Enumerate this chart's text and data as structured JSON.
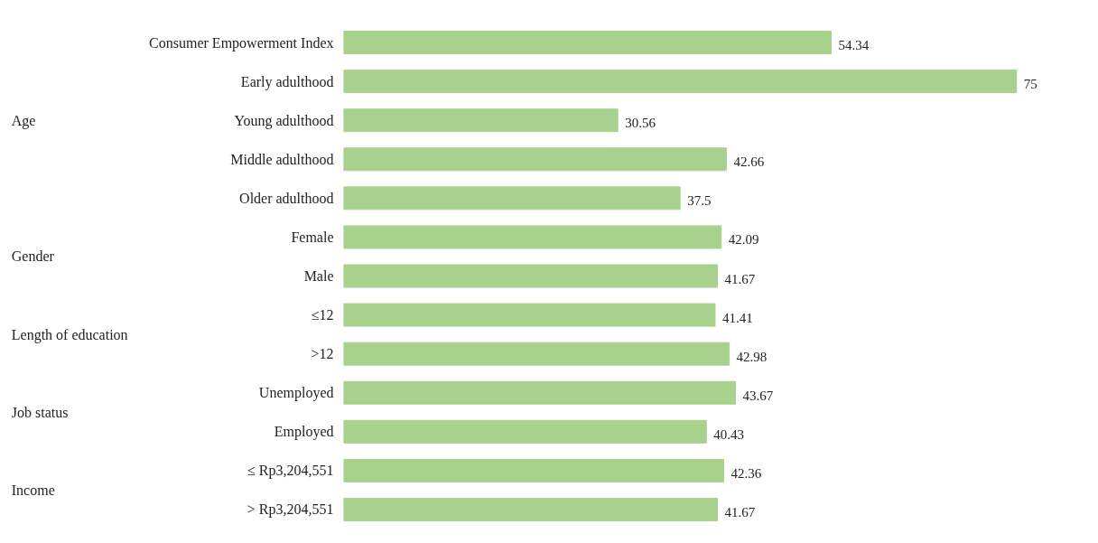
{
  "chart_data": {
    "type": "bar",
    "orientation": "horizontal",
    "categories": [
      "Consumer Empowerment Index",
      "Early adulthood",
      "Young adulthood",
      "Middle adulthood",
      "Older adulthood",
      "Female",
      "Male",
      "≤12",
      ">12",
      "Unemployed",
      "Employed",
      "≤ Rp3,204,551",
      "> Rp3,204,551"
    ],
    "values": [
      54.34,
      75,
      30.56,
      42.66,
      37.5,
      42.09,
      41.67,
      41.41,
      42.98,
      43.67,
      40.43,
      42.36,
      41.67
    ],
    "color": "#a9d18e",
    "data_labels": true,
    "tick_labels": "y",
    "grid": false,
    "annotations": [
      "Age",
      "Gender",
      "Length of education",
      "Job status",
      "Income"
    ]
  }
}
